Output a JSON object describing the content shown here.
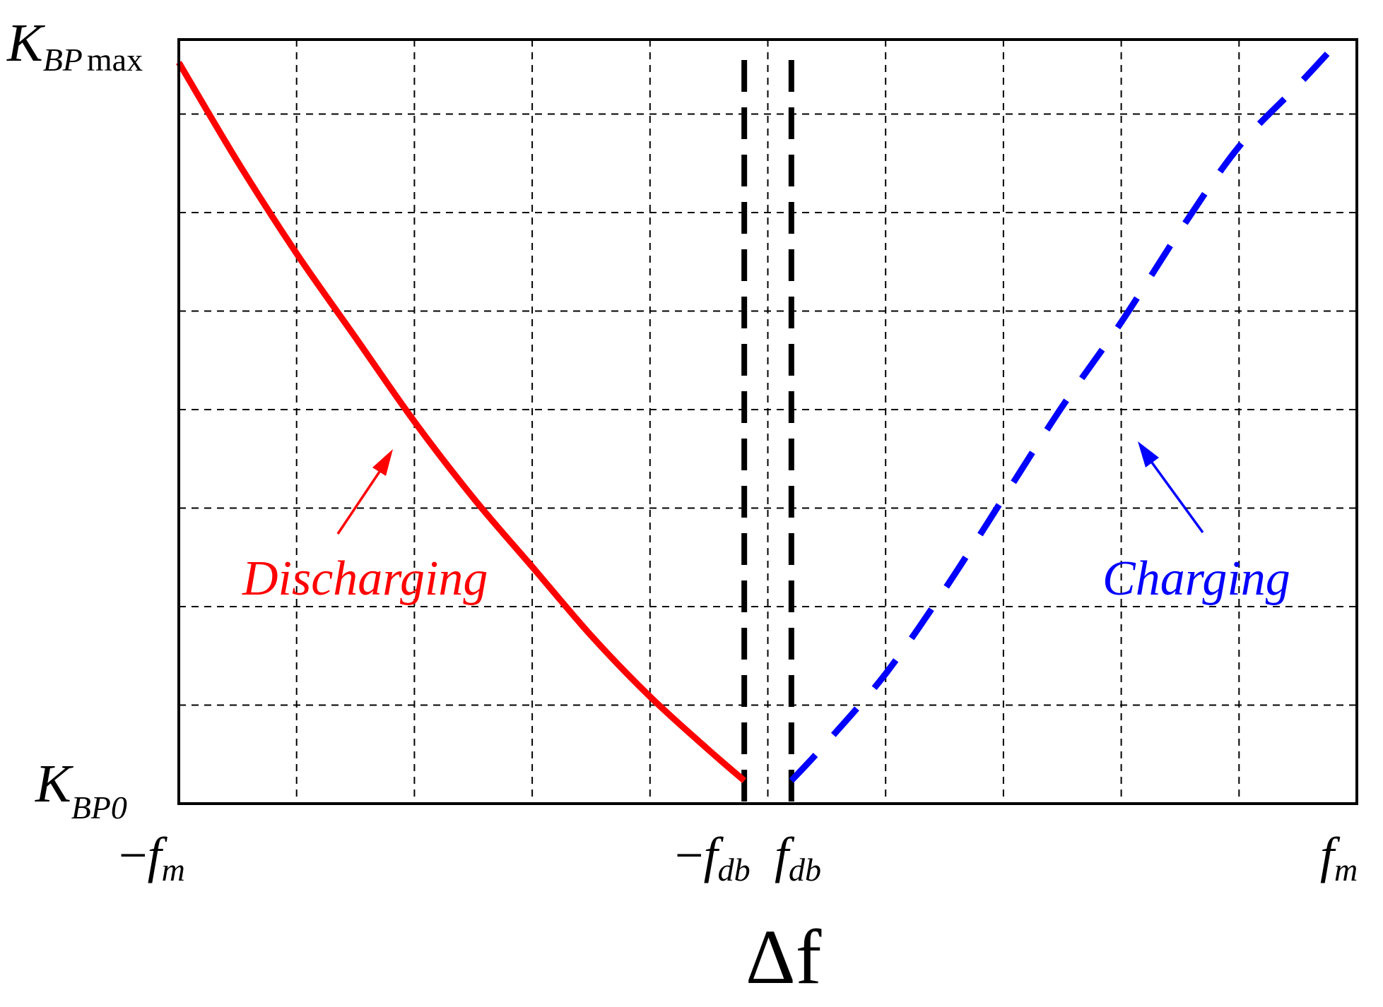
{
  "chart_data": {
    "type": "line",
    "xlabel": "Δf",
    "ylabel": "",
    "x_tick_labels": {
      "neg_fm": {
        "sign": "−",
        "main": "f",
        "sub": "m"
      },
      "neg_fdb": {
        "sign": "−",
        "main": "f",
        "sub": "db"
      },
      "fdb": {
        "sign": "",
        "main": "f",
        "sub": "db"
      },
      "fm": {
        "sign": "",
        "main": "f",
        "sub": "m"
      }
    },
    "y_tick_labels": {
      "kbpmax": {
        "main": "K",
        "sub": "BP",
        "sub2": "max"
      },
      "kbp0": {
        "main": "K",
        "sub": "BP0"
      }
    },
    "grid": true,
    "series": [
      {
        "name": "Discharging",
        "color": "#ff0000",
        "style": "solid",
        "x": [
          -1.0,
          -0.9,
          -0.8,
          -0.7,
          -0.6,
          -0.5,
          -0.4,
          -0.3,
          -0.2,
          -0.1,
          -0.04
        ],
        "y": [
          0.97,
          0.84,
          0.72,
          0.61,
          0.5,
          0.4,
          0.31,
          0.22,
          0.14,
          0.07,
          0.03
        ]
      },
      {
        "name": "Charging",
        "color": "#0000ff",
        "style": "dashed",
        "x": [
          0.04,
          0.1,
          0.2,
          0.3,
          0.4,
          0.5,
          0.6,
          0.7,
          0.8,
          0.9,
          0.96
        ],
        "y": [
          0.03,
          0.08,
          0.17,
          0.28,
          0.4,
          0.52,
          0.63,
          0.75,
          0.86,
          0.94,
          0.99
        ]
      }
    ],
    "deadband_lines": [
      -0.04,
      0.04
    ],
    "annotations": {
      "discharging_label": "Discharging",
      "charging_label": "Charging"
    },
    "colors": {
      "discharging": "#ff0000",
      "charging": "#0000ff",
      "axes": "#000000",
      "grid": "#000000"
    },
    "xlim": [
      -1.0,
      1.0
    ],
    "ylim": [
      0,
      1
    ]
  }
}
